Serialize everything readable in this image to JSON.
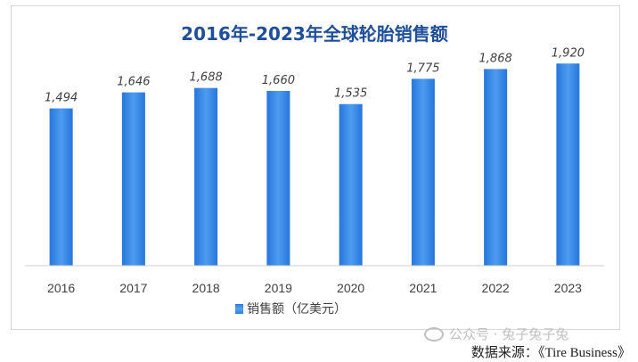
{
  "chart_data": {
    "type": "bar",
    "title": "2016年-2023年全球轮胎销售额",
    "categories": [
      "2016",
      "2017",
      "2018",
      "2019",
      "2020",
      "2021",
      "2022",
      "2023"
    ],
    "series": [
      {
        "name": "销售额（亿美元）",
        "values": [
          1494,
          1646,
          1688,
          1660,
          1535,
          1775,
          1868,
          1920
        ],
        "labels": [
          "1,494",
          "1,646",
          "1,688",
          "1,660",
          "1,535",
          "1,775",
          "1,868",
          "1,920"
        ]
      }
    ],
    "xlabel": "",
    "ylabel": "",
    "ylim": [
      0,
      2100
    ],
    "grid": false,
    "legend_position": "bottom",
    "bar_color": "#2a7ee0"
  },
  "legend": {
    "label": "销售额（亿美元）"
  },
  "watermark": {
    "text": "公众号 · 兔子兔子兔"
  },
  "source": {
    "prefix": "数据来源：",
    "value": "《Tire Business》"
  }
}
